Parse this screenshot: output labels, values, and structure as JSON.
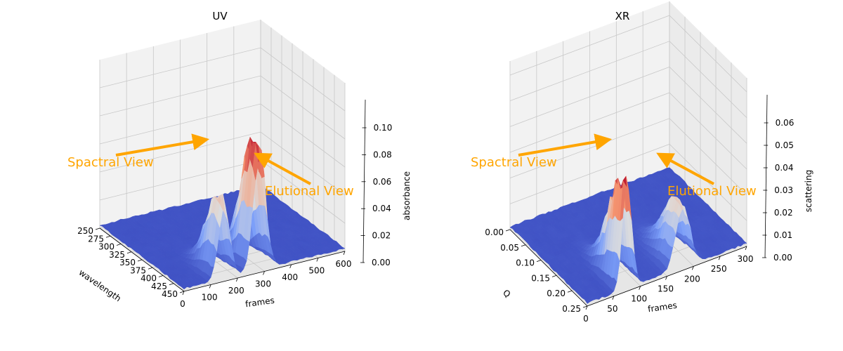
{
  "chart_data": [
    {
      "type": "surface",
      "title": "UV",
      "xlabel": "wavelength",
      "ylabel": "frames",
      "zlabel": "absorbance",
      "x_ticks": [
        "250",
        "275",
        "300",
        "325",
        "350",
        "375",
        "400",
        "425",
        "450"
      ],
      "y_ticks": [
        "0",
        "100",
        "200",
        "300",
        "400",
        "500",
        "600"
      ],
      "z_ticks": [
        "0.00",
        "0.02",
        "0.04",
        "0.06",
        "0.08",
        "0.10"
      ],
      "xlim": [
        250,
        450
      ],
      "ylim": [
        0,
        600
      ],
      "zlim": [
        0,
        0.11
      ],
      "colormap": "coolwarm",
      "peaks": [
        {
          "frame": 150,
          "wavelength": 260,
          "value": 0.075
        },
        {
          "frame": 280,
          "wavelength": 260,
          "value": 0.11
        }
      ],
      "annotations": [
        {
          "text": "Spactral View",
          "color": "#FFA500"
        },
        {
          "text": "Elutional View",
          "color": "#FFA500"
        }
      ]
    },
    {
      "type": "surface",
      "title": "XR",
      "xlabel": "Q",
      "ylabel": "frames",
      "zlabel": "scattering",
      "x_ticks": [
        "0.00",
        "0.05",
        "0.10",
        "0.15",
        "0.20",
        "0.25"
      ],
      "y_ticks": [
        "0",
        "50",
        "100",
        "150",
        "200",
        "250",
        "300"
      ],
      "z_ticks": [
        "0.00",
        "0.01",
        "0.02",
        "0.03",
        "0.04",
        "0.05",
        "0.06"
      ],
      "xlim": [
        0,
        0.28
      ],
      "ylim": [
        0,
        300
      ],
      "zlim": [
        0,
        0.06
      ],
      "colormap": "coolwarm",
      "peaks": [
        {
          "frame": 75,
          "q": 0.01,
          "value": 0.06
        },
        {
          "frame": 180,
          "q": 0.01,
          "value": 0.035
        }
      ],
      "annotations": [
        {
          "text": "Spactral View",
          "color": "#FFA500"
        },
        {
          "text": "Elutional View",
          "color": "#FFA500"
        }
      ]
    }
  ]
}
